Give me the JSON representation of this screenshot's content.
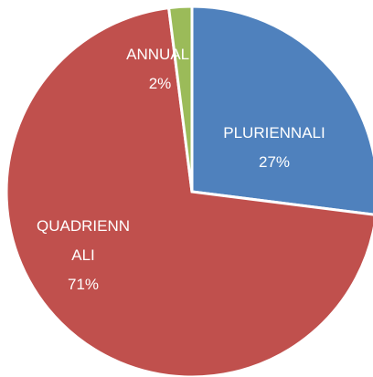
{
  "chart_data": {
    "type": "pie",
    "categories": [
      "PLURIENNALI",
      "QUADRIENNALI",
      "ANNUALI"
    ],
    "values": [
      27,
      71,
      2
    ],
    "value_labels": [
      "27%",
      "71%",
      "2%"
    ],
    "colors": [
      "#4f81bd",
      "#c0504d",
      "#9bbb59"
    ]
  }
}
